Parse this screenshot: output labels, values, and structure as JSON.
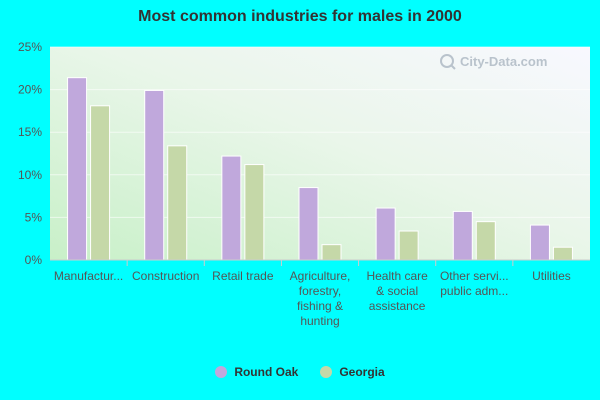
{
  "chart_data": {
    "type": "bar",
    "title": "Most common industries for males in 2000",
    "categories": [
      [
        "Manufactur..."
      ],
      [
        "Construction"
      ],
      [
        "Retail trade"
      ],
      [
        "Agriculture,",
        "forestry,",
        "fishing &",
        "hunting"
      ],
      [
        "Health care",
        "& social",
        "assistance"
      ],
      [
        "Other servi...",
        "public adm..."
      ],
      [
        "Utilities"
      ]
    ],
    "series": [
      {
        "name": "Round Oak",
        "color": "#c0a8dc",
        "values": [
          21.4,
          19.9,
          12.2,
          8.5,
          6.1,
          5.7,
          4.1
        ]
      },
      {
        "name": "Georgia",
        "color": "#c5d8a8",
        "values": [
          18.1,
          13.4,
          11.2,
          1.8,
          3.4,
          4.5,
          1.5
        ]
      }
    ],
    "ylim": [
      0,
      25
    ],
    "yticks": [
      0,
      5,
      10,
      15,
      20,
      25
    ],
    "ytick_labels": [
      "0%",
      "5%",
      "10%",
      "15%",
      "20%",
      "25%"
    ],
    "grid": true,
    "legend_position": "bottom-center",
    "watermark": "City-Data.com"
  }
}
